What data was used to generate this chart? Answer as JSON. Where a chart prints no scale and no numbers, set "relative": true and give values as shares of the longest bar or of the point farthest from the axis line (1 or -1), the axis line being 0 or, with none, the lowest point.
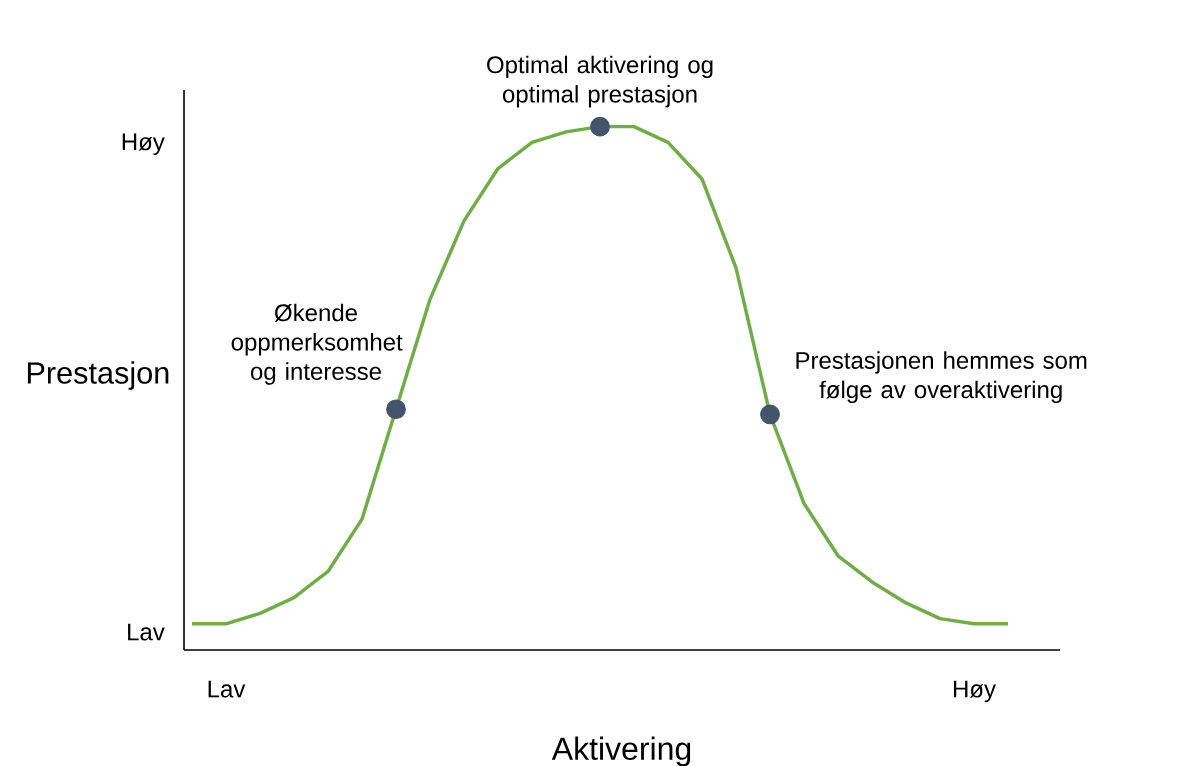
{
  "chart_data": {
    "type": "line",
    "relative": true,
    "xlabel": "Aktivering",
    "ylabel": "Prestasjon",
    "categories": [
      null,
      "Lav",
      null,
      null,
      null,
      null,
      null,
      null,
      null,
      null,
      null,
      null,
      null,
      null,
      null,
      null,
      null,
      null,
      null,
      null,
      null,
      null,
      null,
      "Høy",
      null
    ],
    "series": [
      {
        "color": "#70ad47",
        "values": [
          0.05,
          0.05,
          0.07,
          0.1,
          0.15,
          0.25,
          0.46,
          0.67,
          0.82,
          0.92,
          0.97,
          0.99,
          1.0,
          1.0,
          0.97,
          0.9,
          0.73,
          0.45,
          0.28,
          0.18,
          0.13,
          0.09,
          0.06,
          0.05,
          0.05
        ]
      },
      {
        "type": "scatter",
        "color": "#44546a",
        "marker": "circle",
        "values": [
          null,
          null,
          null,
          null,
          null,
          null,
          0.46,
          null,
          null,
          null,
          null,
          null,
          1.0,
          null,
          null,
          null,
          null,
          0.45,
          null,
          null,
          null,
          null,
          null,
          null,
          null
        ]
      }
    ],
    "annotations": [
      "Økende oppmerksomhet og interesse",
      "Optimal aktivering og optimal prestasjon",
      "Prestasjonen hemmes som følge av overaktivering",
      "Høy",
      "Lav"
    ]
  }
}
